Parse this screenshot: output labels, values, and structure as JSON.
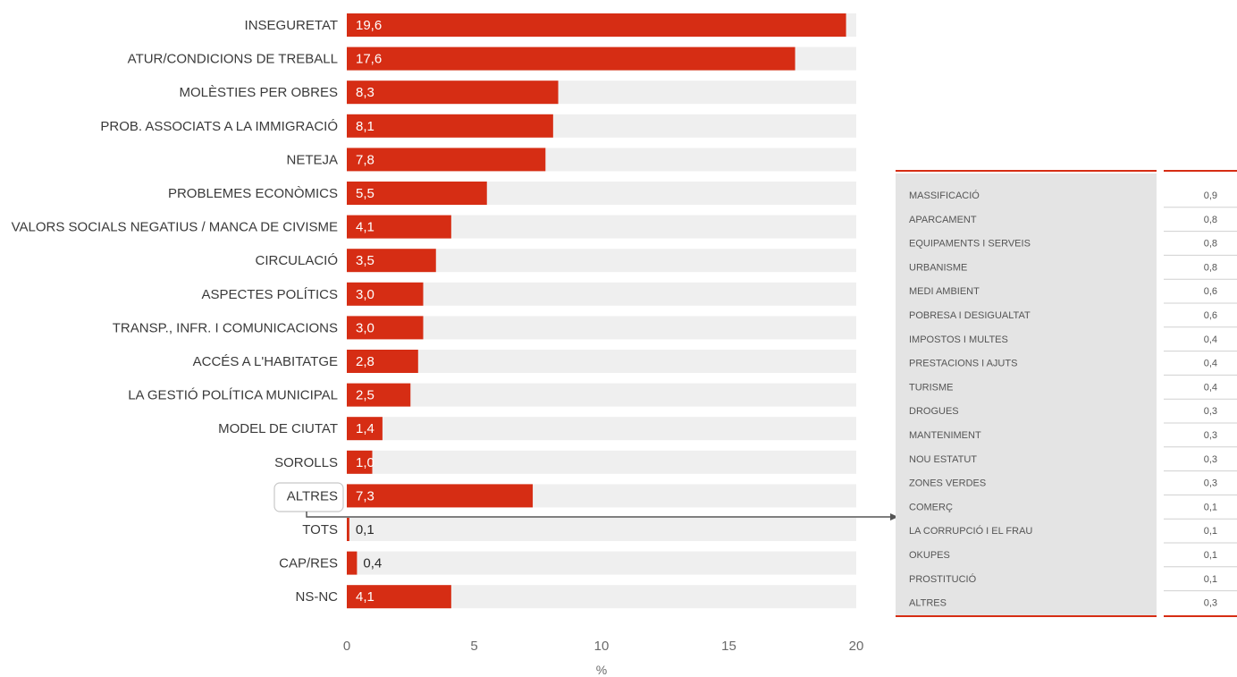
{
  "chart_data": [
    {
      "type": "bar",
      "orientation": "horizontal",
      "categories": [
        "INSEGURETAT",
        "ATUR/CONDICIONS DE TREBALL",
        "MOLÈSTIES PER OBRES",
        "PROB. ASSOCIATS A LA IMMIGRACIÓ",
        "NETEJA",
        "PROBLEMES ECONÒMICS",
        "VALORS SOCIALS NEGATIUS / MANCA DE CIVISME",
        "CIRCULACIÓ",
        "ASPECTES POLÍTICS",
        "TRANSP., INFR. I COMUNICACIONS",
        "ACCÉS A L'HABITATGE",
        "LA GESTIÓ POLÍTICA MUNICIPAL",
        "MODEL DE CIUTAT",
        "SOROLLS",
        "ALTRES",
        "TOTS",
        "CAP/RES",
        "NS-NC"
      ],
      "values": [
        19.6,
        17.6,
        8.3,
        8.1,
        7.8,
        5.5,
        4.1,
        3.5,
        3.0,
        3.0,
        2.8,
        2.5,
        1.4,
        1.0,
        7.3,
        0.1,
        0.4,
        4.1
      ],
      "value_labels": [
        "19,6",
        "17,6",
        "8,3",
        "8,1",
        "7,8",
        "5,5",
        "4,1",
        "3,5",
        "3,0",
        "3,0",
        "2,8",
        "2,5",
        "1,4",
        "1,0",
        "7,3",
        "0,1",
        "0,4",
        "4,1"
      ],
      "xlim": [
        0,
        20
      ],
      "xticks": [
        "0",
        "5",
        "10",
        "15",
        "20"
      ],
      "xlabel": "%",
      "highlighted_category": "ALTRES",
      "bar_color": "#d62d14",
      "track_color": "#efefef"
    },
    {
      "type": "table",
      "title": "",
      "rows": [
        {
          "label": "MASSIFICACIÓ",
          "value": "0,9"
        },
        {
          "label": "APARCAMENT",
          "value": "0,8"
        },
        {
          "label": "EQUIPAMENTS I SERVEIS",
          "value": "0,8"
        },
        {
          "label": "URBANISME",
          "value": "0,8"
        },
        {
          "label": "MEDI AMBIENT",
          "value": "0,6"
        },
        {
          "label": "POBRESA I DESIGUALTAT",
          "value": "0,6"
        },
        {
          "label": "IMPOSTOS I MULTES",
          "value": "0,4"
        },
        {
          "label": "PRESTACIONS I AJUTS",
          "value": "0,4"
        },
        {
          "label": "TURISME",
          "value": "0,4"
        },
        {
          "label": "DROGUES",
          "value": "0,3"
        },
        {
          "label": "MANTENIMENT",
          "value": "0,3"
        },
        {
          "label": "NOU ESTATUT",
          "value": "0,3"
        },
        {
          "label": "ZONES VERDES",
          "value": "0,3"
        },
        {
          "label": "COMERÇ",
          "value": "0,1"
        },
        {
          "label": "LA CORRUPCIÓ I EL FRAU",
          "value": "0,1"
        },
        {
          "label": "OKUPES",
          "value": "0,1"
        },
        {
          "label": "PROSTITUCIÓ",
          "value": "0,1"
        },
        {
          "label": "ALTRES",
          "value": "0,3"
        }
      ],
      "accent_color": "#d62d14",
      "panel_color": "#e4e4e4"
    }
  ]
}
